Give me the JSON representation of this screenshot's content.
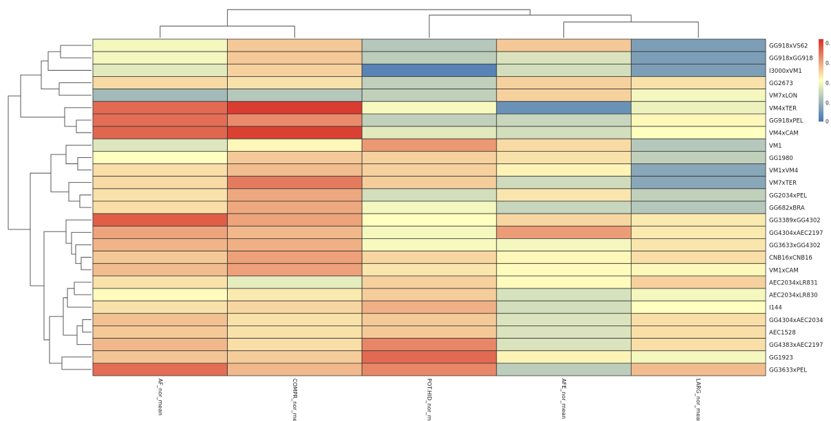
{
  "chart_data": {
    "type": "heatmap",
    "title": "",
    "xlabel": "",
    "ylabel": "",
    "columns": [
      "AF_nor_mean",
      "COMPR_nor_mea",
      "POT.HID_nor_me",
      "AFE_nor_mean",
      "LARG_nor_mean"
    ],
    "rows": [
      "GG918xVS62",
      "GG918xGG918",
      "I3000xVM1",
      "GG2673",
      "VM7xLON",
      "VM4xTER",
      "GG918xPEL",
      "VM4xCAM",
      "VM1",
      "GG1980",
      "VM1xVM4",
      "VM7xTER",
      "GG2034xPEL",
      "GG682xBRA",
      "GG3389xGG4302",
      "GG4304xAEC2197",
      "GG3633xGG4302",
      "CNB16xCNB16",
      "VM1xCAM",
      "AEC2034xLR831",
      "AEC2034xLR830",
      "I144",
      "GG4304xAEC2034",
      "AEC1528",
      "GG4383xAEC2197",
      "GG1923",
      "GG3633xPEL"
    ],
    "values": [
      [
        0.47,
        0.63,
        0.3,
        0.63,
        0.15
      ],
      [
        0.47,
        0.63,
        0.32,
        0.4,
        0.15
      ],
      [
        0.42,
        0.61,
        0.05,
        0.38,
        0.15
      ],
      [
        0.59,
        0.57,
        0.33,
        0.61,
        0.57
      ],
      [
        0.25,
        0.3,
        0.33,
        0.61,
        0.47
      ],
      [
        0.86,
        0.97,
        0.48,
        0.1,
        0.45
      ],
      [
        0.85,
        0.78,
        0.33,
        0.35,
        0.52
      ],
      [
        0.87,
        0.96,
        0.42,
        0.38,
        0.5
      ],
      [
        0.41,
        0.52,
        0.75,
        0.59,
        0.3
      ],
      [
        0.5,
        0.63,
        0.61,
        0.57,
        0.33
      ],
      [
        0.58,
        0.66,
        0.61,
        0.53,
        0.18
      ],
      [
        0.59,
        0.82,
        0.62,
        0.37,
        0.18
      ],
      [
        0.57,
        0.71,
        0.38,
        0.56,
        0.33
      ],
      [
        0.58,
        0.71,
        0.47,
        0.35,
        0.3
      ],
      [
        0.89,
        0.72,
        0.5,
        0.6,
        0.55
      ],
      [
        0.72,
        0.67,
        0.47,
        0.74,
        0.55
      ],
      [
        0.68,
        0.69,
        0.48,
        0.47,
        0.56
      ],
      [
        0.63,
        0.73,
        0.6,
        0.52,
        0.58
      ],
      [
        0.66,
        0.73,
        0.56,
        0.51,
        0.52
      ],
      [
        0.57,
        0.43,
        0.61,
        0.51,
        0.61
      ],
      [
        0.51,
        0.55,
        0.62,
        0.39,
        0.47
      ],
      [
        0.57,
        0.6,
        0.69,
        0.38,
        0.5
      ],
      [
        0.65,
        0.57,
        0.63,
        0.4,
        0.58
      ],
      [
        0.63,
        0.57,
        0.63,
        0.4,
        0.58
      ],
      [
        0.67,
        0.58,
        0.79,
        0.4,
        0.58
      ],
      [
        0.64,
        0.62,
        0.86,
        0.53,
        0.47
      ],
      [
        0.85,
        0.67,
        0.79,
        0.32,
        0.66
      ]
    ],
    "color_scale": {
      "low": "#4575b4",
      "mid": "#ffffbf",
      "high": "#d73027",
      "range": [
        0,
        1
      ]
    },
    "legend": {
      "placement": "top-right",
      "tick_labels": [
        "0.",
        "0.",
        "0.",
        "0.",
        "0"
      ]
    },
    "column_dendrogram": true,
    "row_dendrogram": true
  },
  "colors": {
    "cell_border": "#333333",
    "dendrogram_line": "#444444"
  }
}
